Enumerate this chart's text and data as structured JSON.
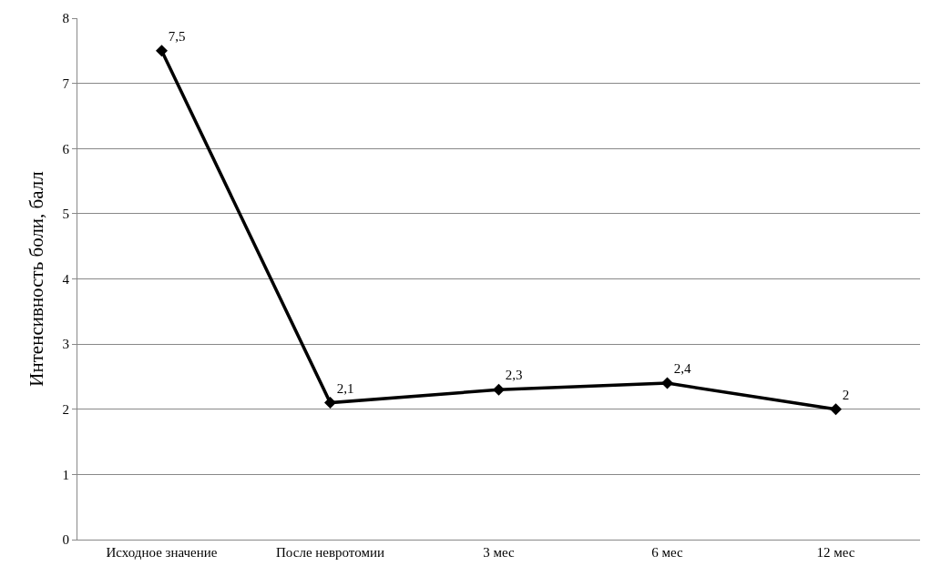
{
  "chart_data": {
    "type": "line",
    "ylabel": "Интенсивность боли, балл",
    "categories": [
      "Исходное значение",
      "После невротомии",
      "3 мес",
      "6 мес",
      "12 мес"
    ],
    "series": [
      {
        "color": "#000000",
        "values": [
          7.5,
          2.1,
          2.3,
          2.4,
          2
        ],
        "value_labels": [
          "7,5",
          "2,1",
          "2,3",
          "2,4",
          "2"
        ]
      }
    ],
    "ylim": [
      0,
      8
    ],
    "yticks": [
      0,
      1,
      2,
      3,
      4,
      5,
      6,
      7,
      8
    ],
    "grid": "y",
    "marker": "diamond",
    "line_style": "solid"
  }
}
